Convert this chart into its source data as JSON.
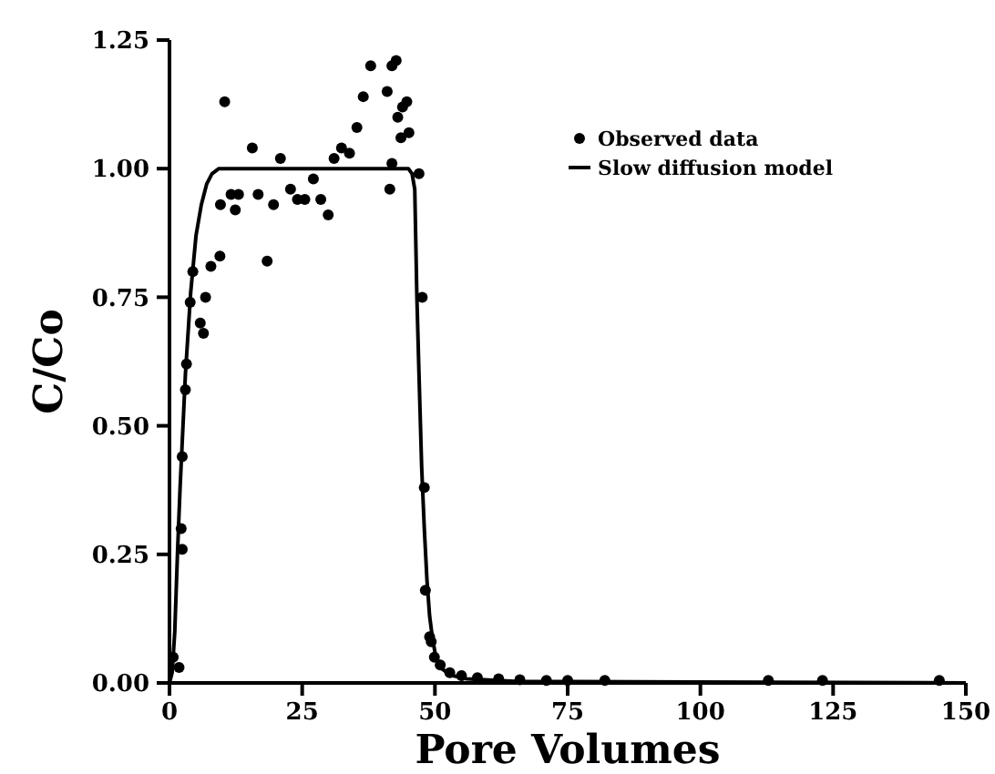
{
  "chart_data": {
    "type": "scatter",
    "xlabel": "Pore Volumes",
    "ylabel": "C/Co",
    "xlim": [
      0,
      150
    ],
    "xticks": [
      0,
      25,
      50,
      75,
      100,
      125,
      150
    ],
    "ylim": [
      0,
      1.25
    ],
    "yticks": [
      {
        "value": 0,
        "label": "0.00"
      },
      {
        "value": 0.25,
        "label": "0.25"
      },
      {
        "value": 0.5,
        "label": "0.50"
      },
      {
        "value": 0.75,
        "label": "0.75"
      },
      {
        "value": 1,
        "label": "1.00"
      },
      {
        "value": 1.25,
        "label": "1.25"
      }
    ],
    "legend": "top right",
    "grid": false,
    "series": [
      {
        "name": "Observed data",
        "marker": "circle",
        "color": "#000000",
        "x": [
          0.7,
          1.8,
          2.2,
          2.4,
          2.4,
          3.0,
          3.2,
          3.9,
          4.4,
          5.8,
          6.4,
          6.8,
          7.8,
          9.5,
          9.6,
          10.4,
          11.6,
          12.4,
          13,
          15.6,
          16.7,
          18.4,
          19.6,
          20.9,
          22.8,
          24.1,
          25.5,
          27.1,
          28.5,
          29.9,
          31,
          32.4,
          33.9,
          35.3,
          36.5,
          37.9,
          41,
          41.5,
          41.9,
          41.9,
          42.7,
          43,
          43.6,
          43.9,
          44.7,
          45.1,
          47,
          47.6,
          48,
          48.2,
          49,
          49.3,
          49.9,
          51,
          52.8,
          55,
          58,
          62,
          66,
          71,
          75,
          82,
          112.8,
          123,
          145
        ],
        "values": [
          0.05,
          0.03,
          0.3,
          0.44,
          0.26,
          0.57,
          0.62,
          0.74,
          0.8,
          0.7,
          0.68,
          0.75,
          0.81,
          0.83,
          0.93,
          1.13,
          0.95,
          0.92,
          0.95,
          1.04,
          0.95,
          0.82,
          0.93,
          1.02,
          0.96,
          0.94,
          0.94,
          0.98,
          0.94,
          0.91,
          1.02,
          1.04,
          1.03,
          1.08,
          1.14,
          1.2,
          1.15,
          0.96,
          1.01,
          1.2,
          1.21,
          1.1,
          1.06,
          1.12,
          1.13,
          1.07,
          0.99,
          0.75,
          0.38,
          0.18,
          0.09,
          0.08,
          0.05,
          0.035,
          0.02,
          0.014,
          0.01,
          0.008,
          0.006,
          0.005,
          0.005,
          0.005,
          0.005,
          0.005,
          0.005
        ]
      },
      {
        "name": "Slow diffusion model",
        "type": "line",
        "line_style": "solid",
        "color": "#000000",
        "x": [
          0,
          0.5,
          1,
          1.5,
          2,
          3,
          4,
          5,
          6,
          7,
          8,
          9.3,
          20,
          40,
          45,
          45.7,
          46.2,
          46.6,
          47,
          47.5,
          48,
          48.5,
          49,
          49.5,
          50,
          51,
          53,
          56,
          65,
          150
        ],
        "values": [
          0,
          0.02,
          0.1,
          0.25,
          0.38,
          0.6,
          0.76,
          0.87,
          0.93,
          0.97,
          0.99,
          1.0,
          1.0,
          1.0,
          1.0,
          0.99,
          0.96,
          0.75,
          0.6,
          0.42,
          0.3,
          0.2,
          0.13,
          0.09,
          0.06,
          0.03,
          0.015,
          0.008,
          0.003,
          0
        ]
      }
    ]
  }
}
